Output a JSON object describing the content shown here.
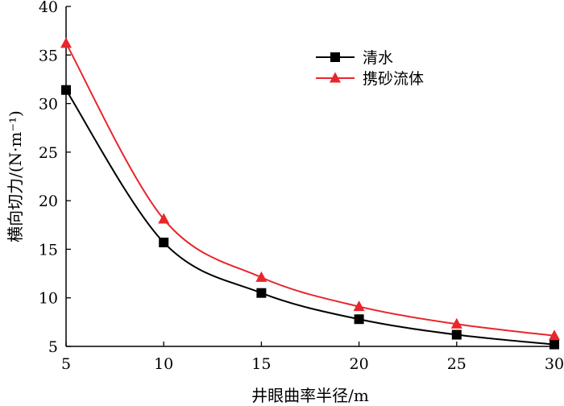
{
  "chart_data": {
    "type": "line",
    "title": "",
    "xlabel": "井眼曲率半径/m",
    "ylabel": "横向切力/(N·m⁻¹)",
    "xlim": [
      5,
      30
    ],
    "ylim": [
      5,
      40
    ],
    "xticks": [
      5,
      10,
      15,
      20,
      25,
      30
    ],
    "yticks": [
      5,
      10,
      15,
      20,
      25,
      30,
      35,
      40
    ],
    "grid": false,
    "legend_position": "top-right",
    "x": [
      5,
      10,
      15,
      20,
      25,
      30
    ],
    "series": [
      {
        "name": "清水",
        "values": [
          31.4,
          15.7,
          10.5,
          7.8,
          6.2,
          5.2
        ],
        "color": "#000000",
        "marker": "square"
      },
      {
        "name": "携砂流体",
        "values": [
          36.2,
          18.1,
          12.1,
          9.1,
          7.3,
          6.1
        ],
        "color": "#e8262b",
        "marker": "triangle"
      }
    ]
  }
}
